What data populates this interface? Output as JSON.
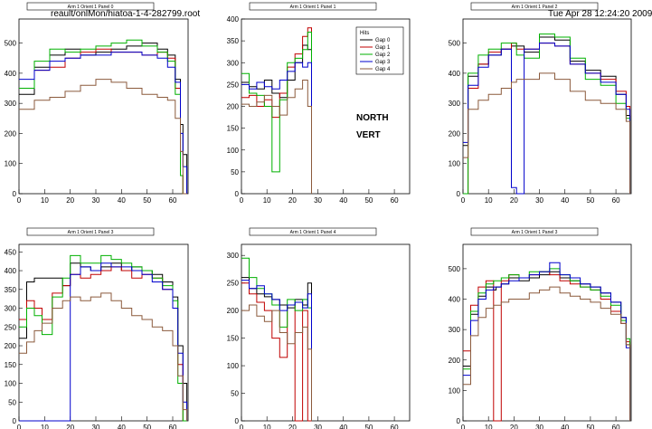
{
  "header": {
    "file": "reault/onlMon/hiatoa-1-4-282799.root",
    "datetime": "Tue Apr 28 12:24:20 2009"
  },
  "annotations": {
    "line1": "NORTH",
    "line2": "VERT"
  },
  "legend": {
    "title": "Hits",
    "entries": [
      {
        "label": "Gap 0",
        "color": "#000000"
      },
      {
        "label": "Gap 1",
        "color": "#c00000"
      },
      {
        "label": "Gap 2",
        "color": "#00b000"
      },
      {
        "label": "Gap 3",
        "color": "#0000cc"
      },
      {
        "label": "Gap 4",
        "color": "#8b5a3c"
      }
    ]
  },
  "chart_data": [
    {
      "type": "line",
      "title": "Arm 1 Orient 1 Panel 0",
      "xlim": [
        0,
        66
      ],
      "ylim": [
        0,
        580
      ],
      "xticks": [
        0,
        10,
        20,
        30,
        40,
        50,
        60
      ],
      "yticks": [
        0,
        100,
        200,
        300,
        400,
        500
      ],
      "x": [
        0,
        6,
        12,
        18,
        24,
        30,
        36,
        42,
        48,
        54,
        58,
        61,
        63,
        64
      ],
      "series": [
        {
          "name": "Gap 0",
          "color": "#000000",
          "values": [
            330,
            420,
            460,
            480,
            460,
            470,
            480,
            490,
            500,
            480,
            460,
            380,
            230,
            130
          ]
        },
        {
          "name": "Gap 1",
          "color": "#c00000",
          "values": [
            350,
            410,
            420,
            450,
            470,
            480,
            470,
            470,
            460,
            470,
            450,
            350,
            60,
            0
          ]
        },
        {
          "name": "Gap 2",
          "color": "#00b000",
          "values": [
            350,
            440,
            480,
            470,
            480,
            490,
            500,
            510,
            490,
            470,
            440,
            330,
            60,
            0
          ]
        },
        {
          "name": "Gap 3",
          "color": "#0000cc",
          "values": [
            380,
            410,
            440,
            450,
            460,
            460,
            470,
            470,
            460,
            450,
            420,
            370,
            200,
            90
          ]
        },
        {
          "name": "Gap 4",
          "color": "#8b5a3c",
          "values": [
            280,
            310,
            320,
            340,
            360,
            380,
            370,
            350,
            330,
            320,
            310,
            250,
            140,
            0
          ]
        }
      ]
    },
    {
      "type": "line",
      "title": "Arm 1 Orient 1 Panel 1",
      "xlim": [
        0,
        66
      ],
      "ylim": [
        0,
        400
      ],
      "xticks": [
        0,
        10,
        20,
        30,
        40,
        50,
        60
      ],
      "yticks": [
        0,
        50,
        100,
        150,
        200,
        250,
        300,
        350,
        400
      ],
      "x": [
        0,
        3,
        6,
        9,
        12,
        15,
        18,
        21,
        24,
        26
      ],
      "series": [
        {
          "name": "Gap 0",
          "color": "#000000",
          "values": [
            255,
            245,
            240,
            260,
            230,
            220,
            260,
            300,
            340,
            330
          ]
        },
        {
          "name": "Gap 1",
          "color": "#c00000",
          "values": [
            220,
            225,
            200,
            215,
            175,
            230,
            290,
            320,
            360,
            380
          ]
        },
        {
          "name": "Gap 2",
          "color": "#00b000",
          "values": [
            275,
            230,
            225,
            200,
            50,
            215,
            300,
            310,
            330,
            370
          ]
        },
        {
          "name": "Gap 3",
          "color": "#0000cc",
          "values": [
            250,
            240,
            255,
            245,
            240,
            260,
            280,
            300,
            290,
            300
          ]
        },
        {
          "name": "Gap 4",
          "color": "#8b5a3c",
          "values": [
            205,
            200,
            210,
            225,
            200,
            180,
            220,
            240,
            260,
            200
          ]
        }
      ]
    },
    {
      "type": "line",
      "title": "Arm 1 Orient 1 Panel 2",
      "xlim": [
        0,
        66
      ],
      "ylim": [
        0,
        580
      ],
      "xticks": [
        0,
        10,
        20,
        30,
        40,
        50,
        60
      ],
      "yticks": [
        0,
        100,
        200,
        300,
        400,
        500
      ],
      "x": [
        0,
        2,
        6,
        10,
        15,
        19,
        21,
        24,
        30,
        36,
        42,
        48,
        54,
        60,
        64
      ],
      "series": [
        {
          "name": "Gap 0",
          "color": "#000000",
          "values": [
            160,
            390,
            430,
            460,
            480,
            490,
            490,
            470,
            520,
            510,
            440,
            410,
            390,
            330,
            260
          ]
        },
        {
          "name": "Gap 1",
          "color": "#c00000",
          "values": [
            0,
            350,
            430,
            470,
            480,
            500,
            480,
            480,
            500,
            490,
            430,
            400,
            380,
            340,
            290
          ]
        },
        {
          "name": "Gap 2",
          "color": "#00b000",
          "values": [
            0,
            400,
            460,
            480,
            500,
            500,
            460,
            450,
            530,
            520,
            450,
            380,
            360,
            300,
            250
          ]
        },
        {
          "name": "Gap 3",
          "color": "#0000cc",
          "values": [
            170,
            360,
            420,
            460,
            480,
            20,
            0,
            480,
            500,
            490,
            430,
            400,
            370,
            330,
            280
          ]
        },
        {
          "name": "Gap 4",
          "color": "#8b5a3c",
          "values": [
            120,
            280,
            310,
            330,
            350,
            370,
            380,
            380,
            400,
            380,
            340,
            310,
            300,
            280,
            240
          ]
        }
      ]
    },
    {
      "type": "line",
      "title": "Arm 1 Orient 1 Panel 3",
      "xlim": [
        0,
        66
      ],
      "ylim": [
        0,
        470
      ],
      "xticks": [
        0,
        10,
        20,
        30,
        40,
        50,
        60
      ],
      "yticks": [
        0,
        50,
        100,
        150,
        200,
        250,
        300,
        350,
        400,
        450
      ],
      "x": [
        0,
        3,
        6,
        9,
        13,
        17,
        20,
        24,
        28,
        32,
        36,
        40,
        44,
        48,
        52,
        56,
        60,
        62,
        64
      ],
      "series": [
        {
          "name": "Gap 0",
          "color": "#000000",
          "values": [
            220,
            370,
            380,
            380,
            380,
            360,
            420,
            410,
            400,
            410,
            420,
            400,
            410,
            400,
            390,
            370,
            330,
            200,
            100
          ]
        },
        {
          "name": "Gap 1",
          "color": "#c00000",
          "values": [
            270,
            320,
            300,
            270,
            340,
            360,
            390,
            380,
            390,
            400,
            410,
            400,
            380,
            390,
            380,
            350,
            300,
            150,
            0
          ]
        },
        {
          "name": "Gap 2",
          "color": "#00b000",
          "values": [
            250,
            300,
            280,
            230,
            330,
            380,
            440,
            420,
            420,
            440,
            430,
            420,
            410,
            400,
            380,
            360,
            320,
            100,
            0
          ]
        },
        {
          "name": "Gap 3",
          "color": "#0000cc",
          "values": [
            0,
            0,
            0,
            0,
            0,
            0,
            390,
            410,
            400,
            420,
            410,
            410,
            400,
            390,
            370,
            350,
            300,
            180,
            50
          ]
        },
        {
          "name": "Gap 4",
          "color": "#8b5a3c",
          "values": [
            180,
            210,
            240,
            260,
            300,
            320,
            330,
            320,
            330,
            340,
            320,
            300,
            280,
            270,
            250,
            240,
            200,
            120,
            30
          ]
        }
      ]
    },
    {
      "type": "line",
      "title": "Arm 1 Orient 1 Panel 4",
      "xlim": [
        0,
        66
      ],
      "ylim": [
        0,
        320
      ],
      "xticks": [
        0,
        10,
        20,
        30,
        40,
        50,
        60
      ],
      "yticks": [
        0,
        50,
        100,
        150,
        200,
        250,
        300
      ],
      "x": [
        0,
        3,
        6,
        9,
        12,
        15,
        18,
        21,
        24,
        26
      ],
      "series": [
        {
          "name": "Gap 0",
          "color": "#000000",
          "values": [
            260,
            240,
            230,
            225,
            220,
            210,
            205,
            220,
            210,
            250
          ]
        },
        {
          "name": "Gap 1",
          "color": "#c00000",
          "values": [
            250,
            230,
            215,
            200,
            150,
            115,
            210,
            0,
            200,
            0
          ]
        },
        {
          "name": "Gap 2",
          "color": "#00b000",
          "values": [
            295,
            260,
            240,
            230,
            210,
            170,
            220,
            200,
            220,
            205
          ]
        },
        {
          "name": "Gap 3",
          "color": "#0000cc",
          "values": [
            255,
            240,
            245,
            230,
            220,
            200,
            210,
            215,
            205,
            230
          ]
        },
        {
          "name": "Gap 4",
          "color": "#8b5a3c",
          "values": [
            200,
            210,
            190,
            180,
            200,
            160,
            140,
            160,
            170,
            130
          ]
        }
      ]
    },
    {
      "type": "line",
      "title": "Arm 1 Orient 1 Panel 3",
      "xlim": [
        0,
        66
      ],
      "ylim": [
        0,
        580
      ],
      "xticks": [
        0,
        10,
        20,
        30,
        40,
        50,
        60
      ],
      "yticks": [
        0,
        100,
        200,
        300,
        400,
        500
      ],
      "x": [
        0,
        3,
        6,
        9,
        12,
        13,
        15,
        18,
        22,
        26,
        30,
        34,
        38,
        42,
        46,
        50,
        54,
        58,
        62,
        64
      ],
      "series": [
        {
          "name": "Gap 0",
          "color": "#000000",
          "values": [
            180,
            350,
            410,
            440,
            430,
            440,
            450,
            470,
            460,
            470,
            480,
            490,
            470,
            460,
            450,
            440,
            420,
            390,
            340,
            250
          ]
        },
        {
          "name": "Gap 1",
          "color": "#c00000",
          "values": [
            230,
            380,
            440,
            460,
            0,
            0,
            460,
            480,
            470,
            480,
            490,
            480,
            460,
            450,
            440,
            430,
            400,
            360,
            320,
            260
          ]
        },
        {
          "name": "Gap 2",
          "color": "#00b000",
          "values": [
            170,
            360,
            420,
            450,
            460,
            460,
            470,
            480,
            470,
            490,
            490,
            500,
            480,
            460,
            440,
            430,
            410,
            380,
            330,
            270
          ]
        },
        {
          "name": "Gap 3",
          "color": "#0000cc",
          "values": [
            150,
            330,
            400,
            430,
            440,
            440,
            450,
            460,
            470,
            480,
            490,
            520,
            480,
            470,
            450,
            440,
            420,
            390,
            340,
            240
          ]
        },
        {
          "name": "Gap 4",
          "color": "#8b5a3c",
          "values": [
            120,
            280,
            340,
            370,
            380,
            380,
            390,
            400,
            400,
            420,
            430,
            440,
            420,
            410,
            400,
            390,
            370,
            350,
            320,
            250
          ]
        }
      ]
    }
  ]
}
